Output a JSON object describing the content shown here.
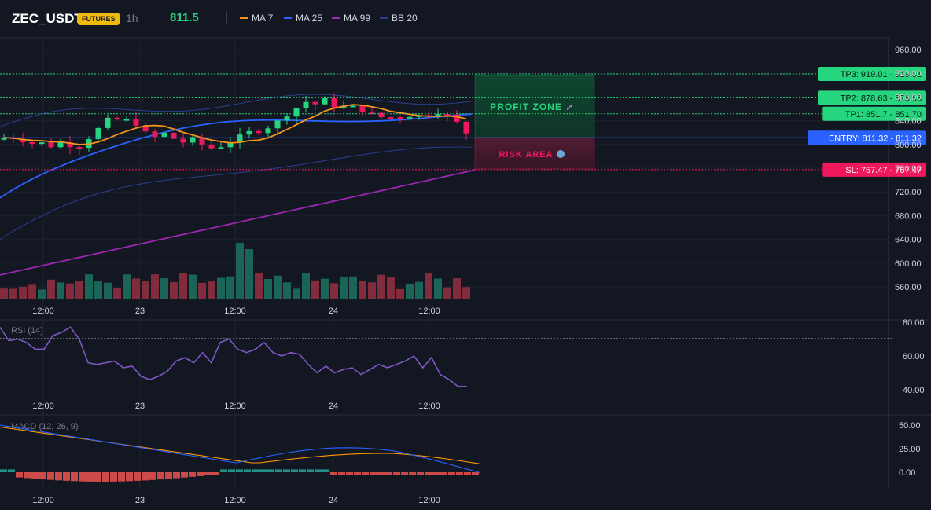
{
  "header": {
    "symbol": "ZEC_USDT",
    "market_badge": "FUTURES",
    "timeframe": "1h",
    "last_price": "811.5",
    "legend": [
      {
        "label": "MA 7",
        "color": "#f7931a"
      },
      {
        "label": "MA 25",
        "color": "#2962ff"
      },
      {
        "label": "MA 99",
        "color": "#9c27b0"
      },
      {
        "label": "BB 20",
        "color": "#2a3f8f"
      }
    ]
  },
  "main_chart": {
    "price_axis_labels": [
      "960.00",
      "920.00",
      "880.00",
      "840.00",
      "800.00",
      "760.00",
      "720.00",
      "680.00",
      "640.00",
      "600.00",
      "560.00"
    ],
    "time_axis_labels": [
      "12:00",
      "23",
      "12:00",
      "24",
      "12:00"
    ],
    "zones": {
      "profit_label": "PROFIT ZONE",
      "risk_label": "RISK AREA"
    },
    "levels": [
      {
        "name": "tp3",
        "text": "TP3: 919.01 - 919.01",
        "price": 919.01,
        "color": "#26d67e",
        "style": "dotted"
      },
      {
        "name": "tp2",
        "text": "TP2: 878.63 - 878.63",
        "price": 878.63,
        "color": "#26d67e",
        "style": "dotted"
      },
      {
        "name": "tp1",
        "text": "TP1: 851.7 - 851.70",
        "price": 851.7,
        "color": "#26d67e",
        "style": "dotted"
      },
      {
        "name": "entry",
        "text": "ENTRY: 811.32 - 811.32",
        "price": 811.32,
        "color": "#2962ff",
        "style": "solid"
      },
      {
        "name": "sl",
        "text": "SL: 757.47 - 757.47",
        "price": 757.47,
        "color": "#f0185c",
        "style": "dotted"
      }
    ]
  },
  "rsi_panel": {
    "title": "RSI (14)",
    "axis_labels": [
      "80.00",
      "60.00",
      "40.00"
    ],
    "time_axis_labels": [
      "12:00",
      "23",
      "12:00",
      "24",
      "12:00"
    ],
    "series": [
      77,
      69,
      70,
      68,
      64,
      64,
      72,
      74,
      77,
      70,
      56,
      55,
      56,
      57,
      53,
      54,
      48,
      46,
      48,
      51,
      57,
      59,
      56,
      62,
      56,
      68,
      70,
      64,
      62,
      64,
      68,
      62,
      60,
      62,
      61,
      55,
      50,
      54,
      50,
      52,
      53,
      49,
      52,
      55,
      53,
      55,
      57,
      60,
      53,
      59,
      49,
      46,
      42,
      42
    ]
  },
  "macd_panel": {
    "title": "MACD (12, 26, 9)",
    "axis_labels": [
      "50.00",
      "25.00",
      "0.00"
    ],
    "time_axis_labels": [
      "12:00",
      "23",
      "12:00",
      "24",
      "12:00"
    ]
  }
}
